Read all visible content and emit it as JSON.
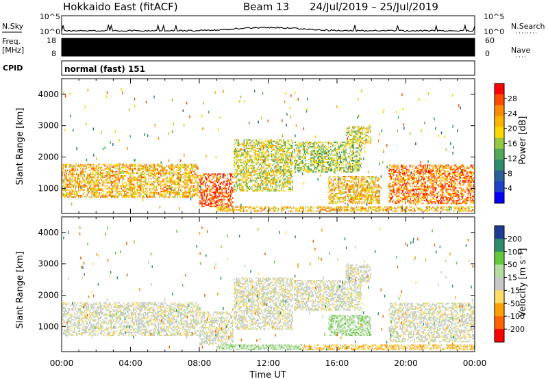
{
  "header": {
    "station": "Hokkaido East (fitACF)",
    "beam": "Beam 13",
    "dates": "24/Jul/2019 – 25/Jul/2019"
  },
  "left_labels": {
    "nsky": "N.Sky",
    "freq_line1": "Freq.",
    "freq_line2": "[MHz]",
    "cpid": "CPID"
  },
  "right_labels": {
    "nsearch": "N.Search",
    "nave": "Nave"
  },
  "noise_panel": {
    "tick_top": "10^5",
    "tick_bottom": "10^0",
    "tick_top_right": "10^5",
    "tick_bottom_right": "10^0"
  },
  "freq_panel": {
    "tick_top": "18",
    "tick_bottom": "8",
    "tick_top_right": "60",
    "tick_bottom_right": "0"
  },
  "cpid_text": "normal (fast) 151",
  "chart_data": [
    {
      "type": "heatmap",
      "quantity": "Power",
      "ylabel": "Slant Range [km]",
      "yticks": [
        "1000",
        "2000",
        "3000",
        "4000"
      ],
      "ylim": [
        200,
        4500
      ],
      "xlim_hours": [
        0,
        24
      ],
      "colorbar_label": "Power [dB]",
      "colorbar_ticks": [
        "28",
        "24",
        "20",
        "16",
        "12",
        "8",
        "4"
      ],
      "colorbar_colors": [
        "#ff0000",
        "#ff4a00",
        "#ff8c00",
        "#ffb400",
        "#ffd800",
        "#98c840",
        "#52a95a",
        "#2e8b6b",
        "#2a5f9a",
        "#1e3fc8",
        "#0000ff"
      ],
      "echo_regions": [
        {
          "t0": 0.0,
          "t1": 8.0,
          "r0": 700,
          "r1": 1800,
          "p": 22
        },
        {
          "t0": 8.0,
          "t1": 10.0,
          "r0": 400,
          "r1": 1500,
          "p": 28
        },
        {
          "t0": 10.0,
          "t1": 13.5,
          "r0": 900,
          "r1": 2600,
          "p": 18
        },
        {
          "t0": 13.5,
          "t1": 17.5,
          "r0": 1500,
          "r1": 2500,
          "p": 16
        },
        {
          "t0": 15.5,
          "t1": 18.5,
          "r0": 500,
          "r1": 1400,
          "p": 22
        },
        {
          "t0": 16.5,
          "t1": 18.0,
          "r0": 2400,
          "r1": 3000,
          "p": 18
        },
        {
          "t0": 19.0,
          "t1": 24.0,
          "r0": 500,
          "r1": 1800,
          "p": 26
        },
        {
          "t0": 9.0,
          "t1": 24.0,
          "r0": 250,
          "r1": 450,
          "p": 22
        }
      ]
    },
    {
      "type": "heatmap",
      "quantity": "Velocity",
      "ylabel": "Slant Range [km]",
      "yticks": [
        "1000",
        "2000",
        "3000",
        "4000"
      ],
      "ylim": [
        200,
        4500
      ],
      "xlim_hours": [
        0,
        24
      ],
      "xticks": [
        "00:00",
        "04:00",
        "08:00",
        "12:00",
        "16:00",
        "20:00",
        "00:00"
      ],
      "xlabel": "Time UT",
      "colorbar_label": "Velocity [m s⁻¹]",
      "colorbar_ticks": [
        "200",
        "100",
        "50",
        "15",
        "-15",
        "-50",
        "-100",
        "-200"
      ],
      "colorbar_colors": [
        "#1e3c96",
        "#2e8b6b",
        "#64c83c",
        "#b4dca0",
        "#c8c8c8",
        "#ffdc64",
        "#ffa000",
        "#ff6400",
        "#ff0000"
      ],
      "echo_regions": [
        {
          "t0": 0.0,
          "t1": 8.0,
          "r0": 700,
          "r1": 1800,
          "v": 0
        },
        {
          "t0": 8.0,
          "t1": 10.0,
          "r0": 400,
          "r1": 1500,
          "v": 0
        },
        {
          "t0": 10.0,
          "t1": 13.5,
          "r0": 900,
          "r1": 2600,
          "v": 0
        },
        {
          "t0": 13.5,
          "t1": 17.5,
          "r0": 1500,
          "r1": 2500,
          "v": 0
        },
        {
          "t0": 15.5,
          "t1": 18.0,
          "r0": 700,
          "r1": 1400,
          "v": 40
        },
        {
          "t0": 16.5,
          "t1": 18.0,
          "r0": 2400,
          "r1": 3000,
          "v": 0
        },
        {
          "t0": 19.0,
          "t1": 24.0,
          "r0": 500,
          "r1": 1800,
          "v": 0
        },
        {
          "t0": 9.0,
          "t1": 14.0,
          "r0": 250,
          "r1": 450,
          "v": 40
        },
        {
          "t0": 14.0,
          "t1": 24.0,
          "r0": 250,
          "r1": 450,
          "v": -60
        }
      ]
    }
  ]
}
